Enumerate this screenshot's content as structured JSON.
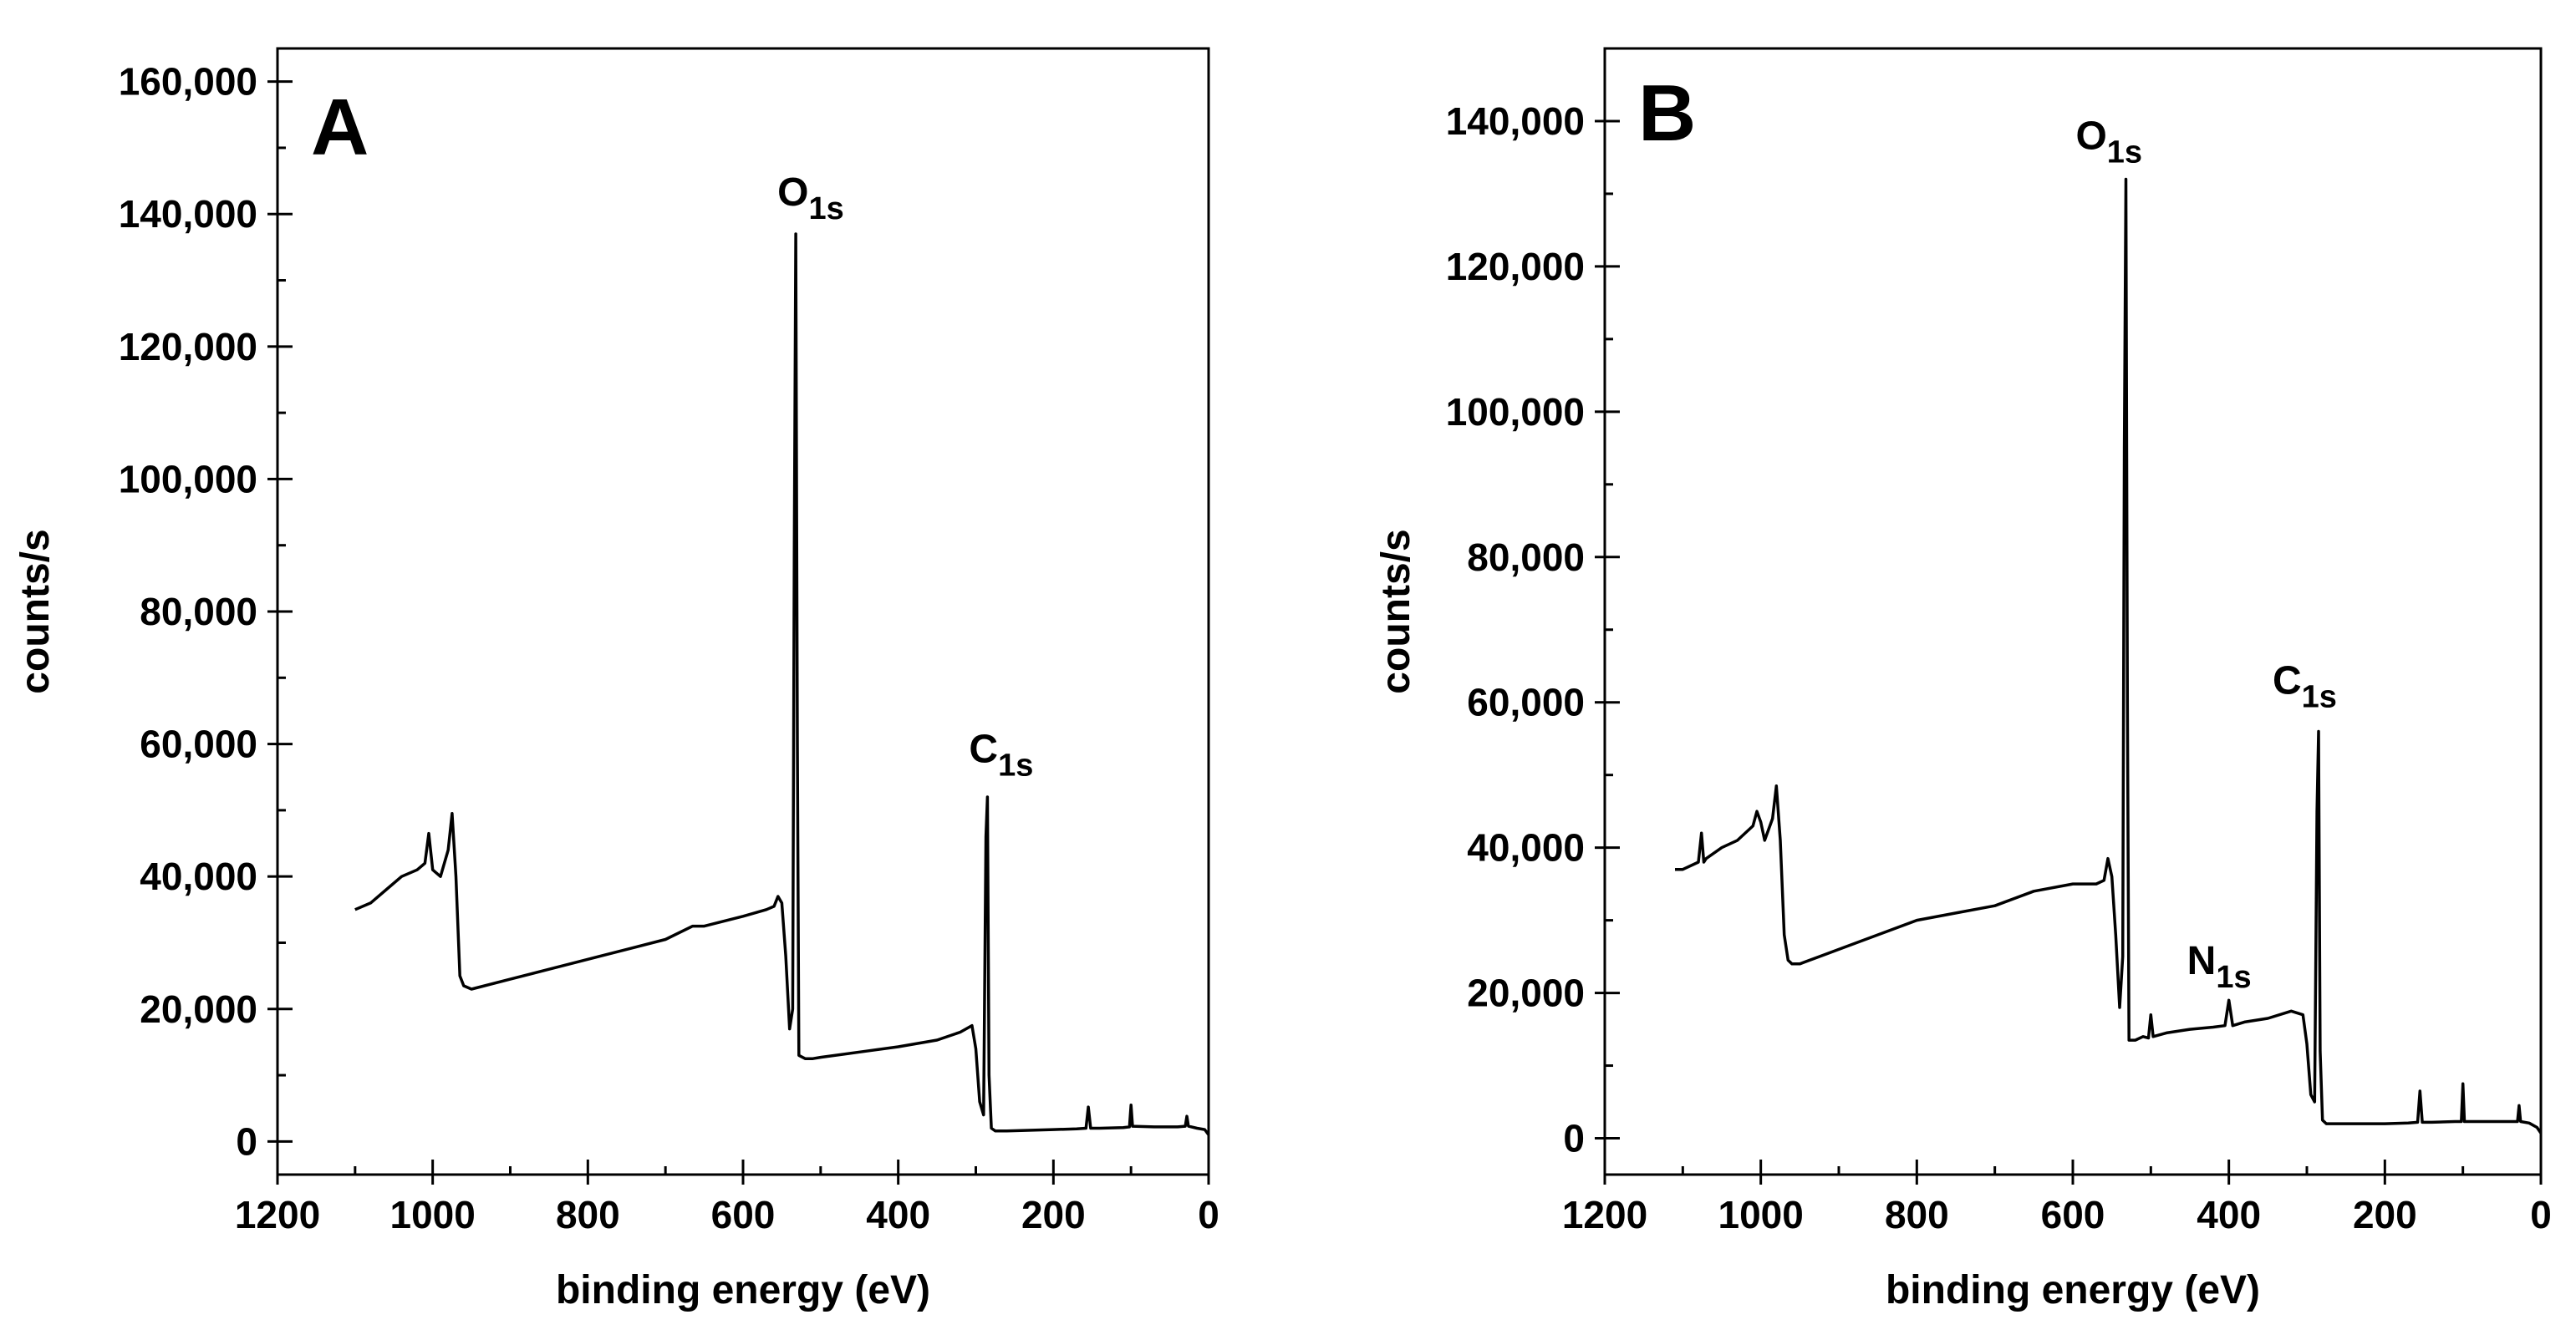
{
  "figure": {
    "panels": [
      {
        "panel_label": "A",
        "ylabel": "counts/s",
        "xlabel": "binding energy (eV)",
        "y_tick_labels": [
          "0",
          "20,000",
          "40,000",
          "60,000",
          "80,000",
          "100,000",
          "120,000",
          "140,000",
          "160,000"
        ],
        "x_tick_labels": [
          "1200",
          "1000",
          "800",
          "600",
          "400",
          "200",
          "0"
        ],
        "annotations": [
          {
            "main": "O",
            "sub": "1s",
            "x": 532,
            "y": 140000
          },
          {
            "main": "C",
            "sub": "1s",
            "x": 285,
            "y": 56000
          }
        ]
      },
      {
        "panel_label": "B",
        "ylabel": "counts/s",
        "xlabel": "binding energy (eV)",
        "y_tick_labels": [
          "0",
          "20,000",
          "40,000",
          "60,000",
          "80,000",
          "100,000",
          "120,000",
          "140,000"
        ],
        "x_tick_labels": [
          "1200",
          "1000",
          "800",
          "600",
          "400",
          "200",
          "0"
        ],
        "annotations": [
          {
            "main": "O",
            "sub": "1s",
            "x": 532,
            "y": 135000
          },
          {
            "main": "C",
            "sub": "1s",
            "x": 285,
            "y": 60000
          },
          {
            "main": "N",
            "sub": "1s",
            "x": 400,
            "y": 21000
          }
        ]
      }
    ]
  },
  "chart_data": [
    {
      "type": "line",
      "title": "A",
      "xlabel": "binding energy (eV)",
      "ylabel": "counts/s",
      "xlim": [
        1200,
        0
      ],
      "ylim": [
        -5000,
        165000
      ],
      "x_reversed": true,
      "grid": false,
      "line_color": "#000000",
      "x": [
        1100,
        1080,
        1060,
        1040,
        1020,
        1010,
        1005,
        1000,
        990,
        980,
        975,
        970,
        965,
        960,
        950,
        900,
        850,
        800,
        750,
        700,
        665,
        650,
        600,
        570,
        560,
        555,
        550,
        545,
        540,
        536,
        534,
        532,
        530,
        528,
        520,
        510,
        500,
        450,
        400,
        350,
        320,
        305,
        300,
        295,
        290,
        287,
        285,
        283,
        280,
        275,
        260,
        200,
        170,
        158,
        155,
        152,
        140,
        110,
        102,
        100,
        98,
        70,
        40,
        30,
        28,
        26,
        15,
        5,
        0
      ],
      "y": [
        35000,
        36000,
        38000,
        40000,
        41000,
        42000,
        46500,
        41000,
        40000,
        44000,
        49500,
        40000,
        25000,
        23500,
        23000,
        24500,
        26000,
        27500,
        29000,
        30500,
        32500,
        32500,
        34000,
        35000,
        35500,
        37000,
        36000,
        28000,
        17000,
        20000,
        90000,
        137000,
        60000,
        13000,
        12500,
        12500,
        12700,
        13500,
        14300,
        15300,
        16500,
        17500,
        14000,
        6000,
        4000,
        46000,
        52000,
        10000,
        2000,
        1600,
        1600,
        1800,
        1900,
        2000,
        5200,
        2000,
        2000,
        2100,
        2200,
        5500,
        2300,
        2200,
        2200,
        2300,
        3800,
        2300,
        2000,
        1800,
        1000
      ]
    },
    {
      "type": "line",
      "title": "B",
      "xlabel": "binding energy (eV)",
      "ylabel": "counts/s",
      "xlim": [
        1200,
        0
      ],
      "ylim": [
        -5000,
        150000
      ],
      "x_reversed": true,
      "grid": false,
      "line_color": "#000000",
      "x": [
        1110,
        1100,
        1080,
        1076,
        1073,
        1070,
        1050,
        1030,
        1010,
        1005,
        1000,
        995,
        985,
        980,
        975,
        970,
        965,
        960,
        950,
        900,
        850,
        800,
        750,
        700,
        650,
        600,
        570,
        560,
        555,
        550,
        545,
        540,
        536,
        534,
        532,
        530,
        528,
        520,
        510,
        503,
        500,
        497,
        480,
        450,
        420,
        405,
        400,
        395,
        380,
        350,
        320,
        305,
        300,
        295,
        290,
        287,
        285,
        283,
        280,
        275,
        260,
        200,
        170,
        158,
        155,
        152,
        140,
        110,
        102,
        100,
        98,
        70,
        40,
        30,
        28,
        26,
        15,
        5,
        0
      ],
      "y": [
        37000,
        37000,
        38000,
        42000,
        38000,
        38500,
        40000,
        41000,
        43000,
        45000,
        43500,
        41000,
        44000,
        48500,
        41000,
        28000,
        24500,
        24000,
        24000,
        26000,
        28000,
        30000,
        31000,
        32000,
        34000,
        35000,
        35000,
        35500,
        38500,
        36000,
        28000,
        18000,
        25000,
        95000,
        132000,
        60000,
        13500,
        13500,
        14000,
        13800,
        17000,
        14000,
        14500,
        15000,
        15300,
        15500,
        19000,
        15500,
        16000,
        16500,
        17500,
        17000,
        13000,
        6000,
        5000,
        45000,
        56000,
        12000,
        2500,
        2000,
        2000,
        2000,
        2100,
        2200,
        6500,
        2200,
        2200,
        2300,
        2300,
        7500,
        2300,
        2300,
        2300,
        2300,
        4500,
        2300,
        2100,
        1500,
        700
      ]
    }
  ]
}
